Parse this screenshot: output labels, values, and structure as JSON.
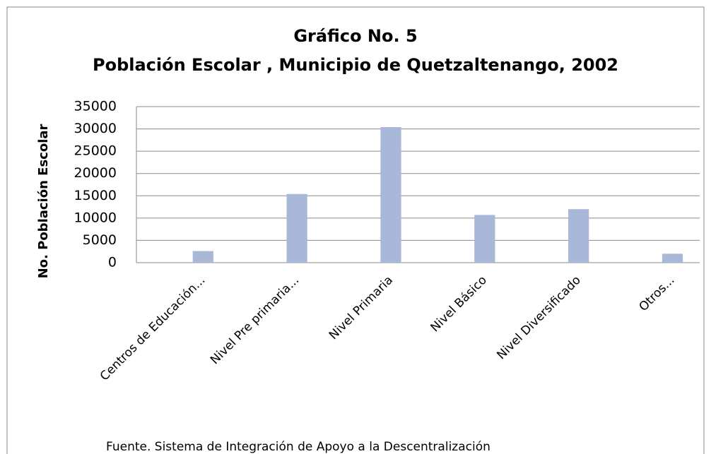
{
  "chart_data": {
    "type": "bar",
    "title": "Gráfico No. 5",
    "subtitle": "Población Escolar , Municipio de Quetzaltenango, 2002",
    "y_label": "No.  Población Escolar",
    "source": "Fuente.  Sistema de Integración de Apoyo a la Descentralización",
    "categories": [
      "Centros de Educación...",
      "Nivel Pre primaria...",
      "Nivel Primaria",
      "Nivel Básico",
      "Nivel Diversificado",
      "Otros..."
    ],
    "values": [
      2600,
      15400,
      30400,
      10700,
      12000,
      2000
    ],
    "color": "#a9b8d8",
    "ylim": [
      0,
      35000
    ],
    "yticks": [
      0,
      5000,
      10000,
      15000,
      20000,
      25000,
      30000,
      35000
    ],
    "grid": true
  }
}
